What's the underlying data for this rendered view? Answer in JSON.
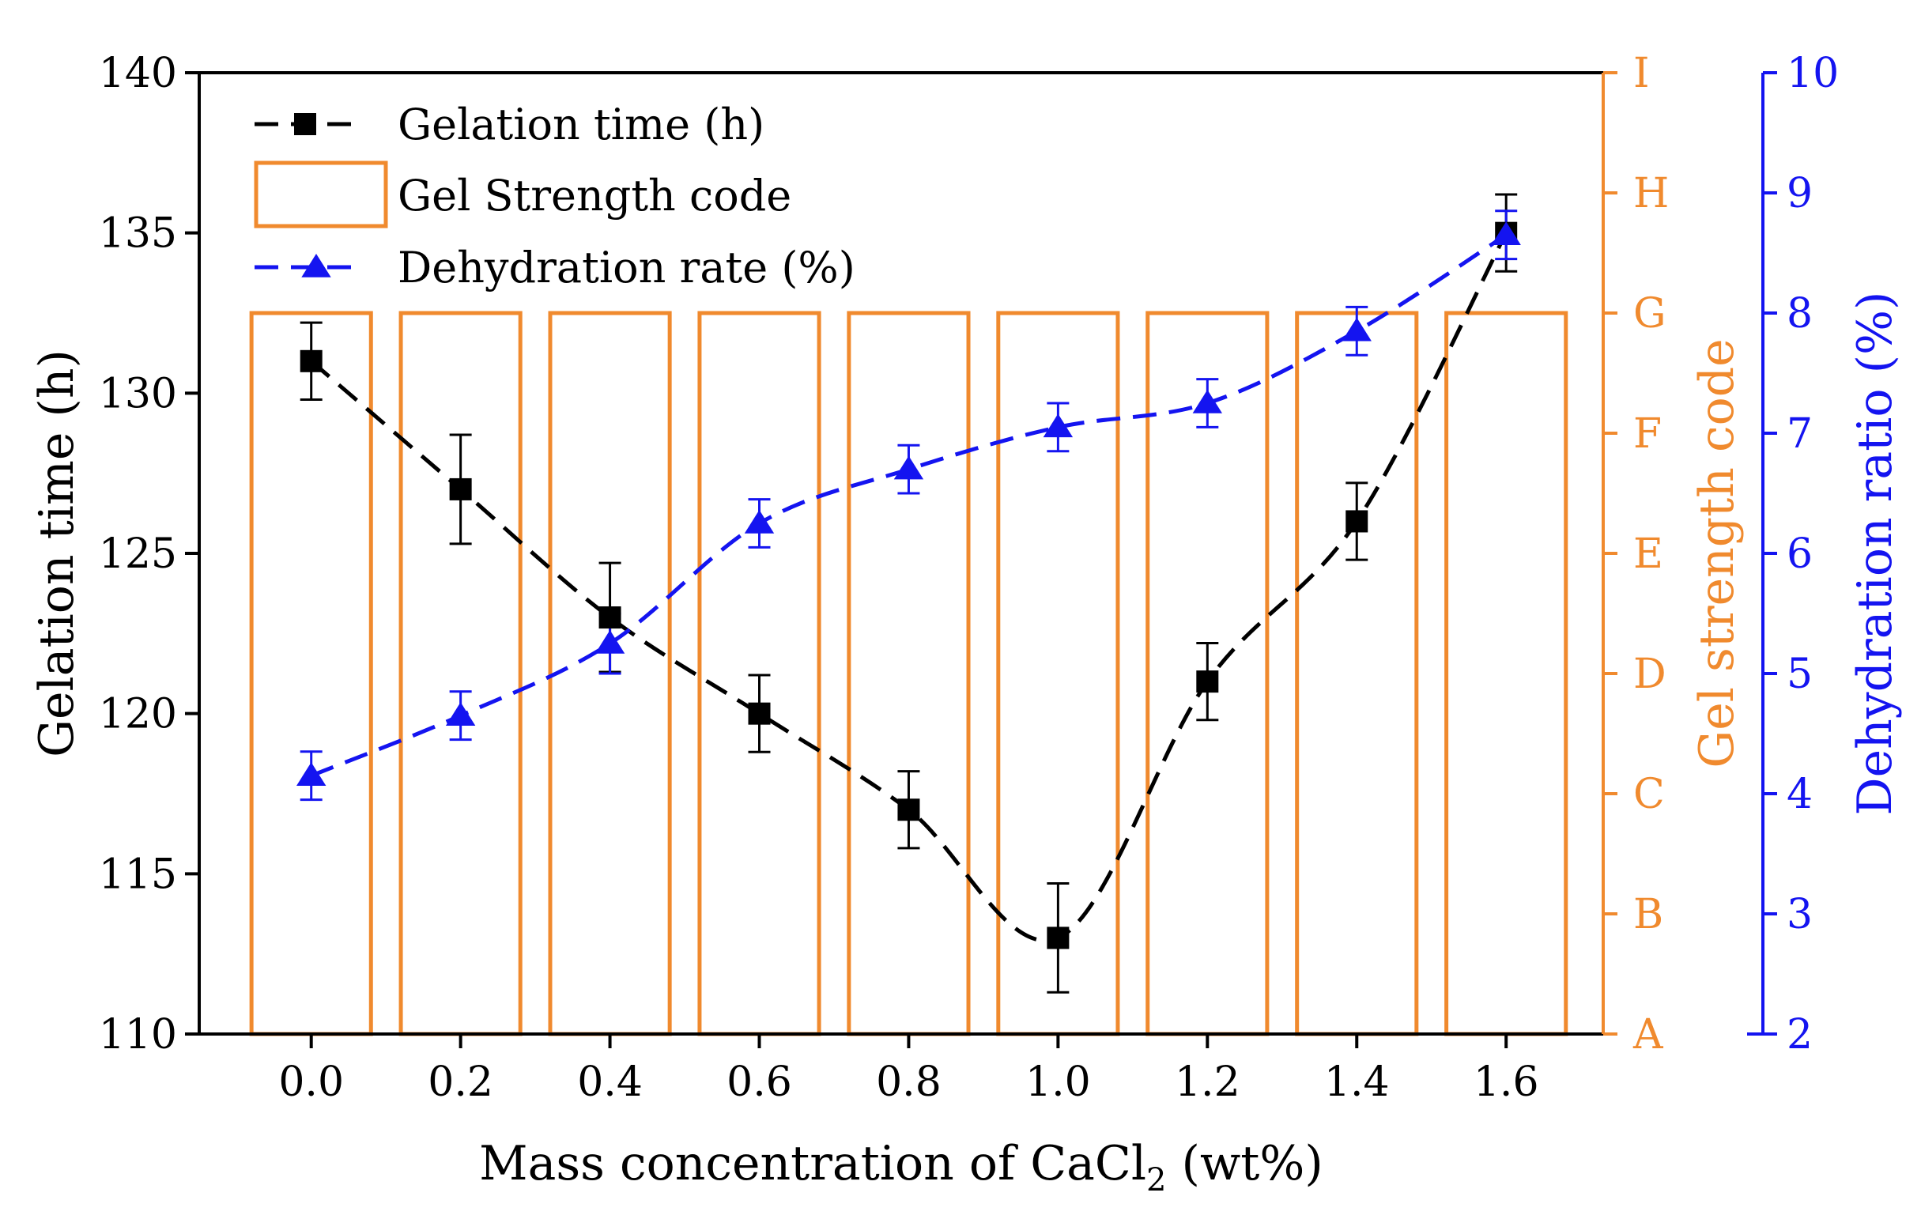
{
  "chart_data": {
    "type": "bar+line",
    "title": "",
    "xlabel": {
      "main": "Mass concentration of CaCl",
      "sub": "2",
      "suffix": " (wt%)"
    },
    "x": [
      0.0,
      0.2,
      0.4,
      0.6,
      0.8,
      1.0,
      1.2,
      1.4,
      1.6
    ],
    "x_tick_labels": [
      "0.0",
      "0.2",
      "0.4",
      "0.6",
      "0.8",
      "1.0",
      "1.2",
      "1.4",
      "1.6"
    ],
    "xlim": [
      -0.15,
      1.73
    ],
    "y_left": {
      "label": "Gelation time (h)",
      "range": [
        110,
        140
      ],
      "ticks": [
        110,
        115,
        120,
        125,
        130,
        135,
        140
      ],
      "tick_labels": [
        "110",
        "115",
        "120",
        "125",
        "130",
        "135",
        "140"
      ]
    },
    "y_right1": {
      "label": "Gel strength code",
      "color": "#F08A2E",
      "codes": [
        "A",
        "B",
        "C",
        "D",
        "E",
        "F",
        "G",
        "H",
        "I"
      ]
    },
    "y_right2": {
      "label": "Dehydration ratio (%)",
      "color": "#1414F0",
      "range": [
        2,
        10
      ],
      "ticks": [
        2,
        3,
        4,
        5,
        6,
        7,
        8,
        9,
        10
      ],
      "tick_labels": [
        "2",
        "3",
        "4",
        "5",
        "6",
        "7",
        "8",
        "9",
        "10"
      ]
    },
    "series": [
      {
        "name": "Gelation time (h)",
        "axis": "left",
        "color": "#000000",
        "marker": "square",
        "line": "dashed",
        "values": [
          131,
          127,
          123,
          120,
          117,
          113,
          121,
          126,
          135
        ],
        "errors": [
          1.2,
          1.7,
          1.7,
          1.2,
          1.2,
          1.7,
          1.2,
          1.2,
          1.2
        ]
      },
      {
        "name": "Gel Strength code",
        "axis": "right1",
        "color": "#F08A2E",
        "type": "bar",
        "values": [
          "G",
          "G",
          "G",
          "G",
          "G",
          "G",
          "G",
          "G",
          "G"
        ]
      },
      {
        "name": "Dehydration rate (%)",
        "axis": "right2",
        "color": "#1414F0",
        "marker": "triangle",
        "line": "dashed",
        "values": [
          4.15,
          4.65,
          5.25,
          6.25,
          6.7,
          7.05,
          7.25,
          7.85,
          8.65
        ],
        "errors": [
          0.2,
          0.2,
          0.25,
          0.2,
          0.2,
          0.2,
          0.2,
          0.2,
          0.2
        ]
      }
    ],
    "legend": {
      "position": "top-left",
      "entries": [
        "Gelation time (h)",
        "Gel Strength code",
        "Dehydration rate (%)"
      ]
    }
  }
}
